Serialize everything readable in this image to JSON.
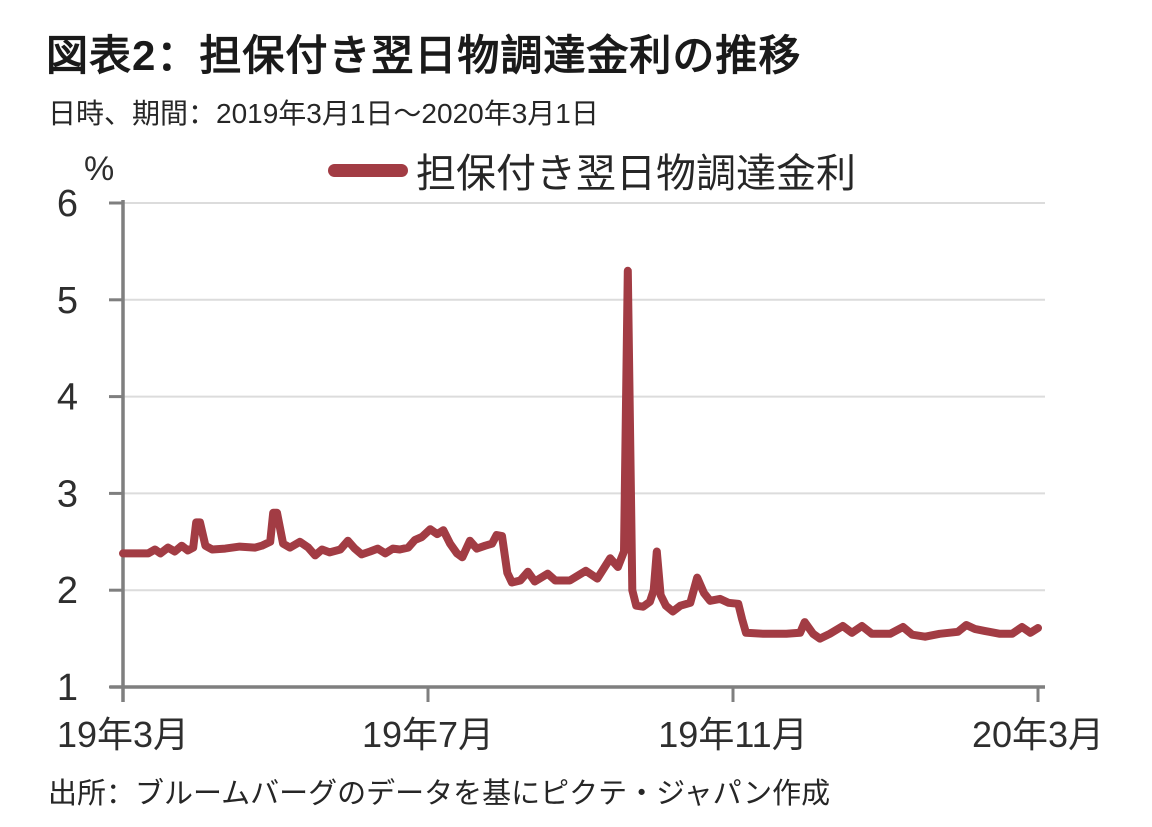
{
  "header": {
    "title": "図表2：担保付き翌日物調達金利の推移",
    "subtitle": "日時、期間：2019年3月1日～2020年3月1日"
  },
  "legend": {
    "label": "担保付き翌日物調達金利"
  },
  "footer": {
    "source": "出所：ブルームバーグのデータを基にピクテ・ジャパン作成"
  },
  "colors": {
    "line": "#A23C44",
    "axis": "#7F7F7F",
    "grid": "#DCDCDC",
    "tick_text": "#2e2e2e",
    "background": "#FFFFFF"
  },
  "chart_data": {
    "type": "line",
    "title": "図表2：担保付き翌日物調達金利の推移",
    "subtitle": "日時、期間：2019年3月1日～2020年3月1日",
    "legend_position": "top",
    "grid": "horizontal",
    "y_axis": {
      "unit": "%",
      "range": [
        1,
        6
      ],
      "ticks": [
        1,
        2,
        3,
        4,
        5,
        6
      ]
    },
    "x_axis": {
      "range": [
        0,
        12
      ],
      "ticks": [
        {
          "t": 0,
          "label": "19年3月"
        },
        {
          "t": 4,
          "label": "19年7月"
        },
        {
          "t": 8,
          "label": "19年11月"
        },
        {
          "t": 12,
          "label": "20年3月"
        }
      ]
    },
    "series": [
      {
        "name": "担保付き翌日物調達金利",
        "color": "#A23C44",
        "points": [
          [
            0.0,
            2.38
          ],
          [
            0.33,
            2.38
          ],
          [
            0.42,
            2.42
          ],
          [
            0.49,
            2.38
          ],
          [
            0.59,
            2.44
          ],
          [
            0.68,
            2.4
          ],
          [
            0.77,
            2.46
          ],
          [
            0.85,
            2.41
          ],
          [
            0.92,
            2.44
          ],
          [
            0.96,
            2.7
          ],
          [
            1.01,
            2.7
          ],
          [
            1.08,
            2.46
          ],
          [
            1.17,
            2.42
          ],
          [
            1.34,
            2.43
          ],
          [
            1.53,
            2.45
          ],
          [
            1.73,
            2.44
          ],
          [
            1.82,
            2.46
          ],
          [
            1.93,
            2.5
          ],
          [
            1.97,
            2.8
          ],
          [
            2.02,
            2.8
          ],
          [
            2.1,
            2.48
          ],
          [
            2.19,
            2.44
          ],
          [
            2.32,
            2.5
          ],
          [
            2.43,
            2.44
          ],
          [
            2.52,
            2.36
          ],
          [
            2.61,
            2.42
          ],
          [
            2.71,
            2.39
          ],
          [
            2.85,
            2.42
          ],
          [
            2.95,
            2.51
          ],
          [
            3.04,
            2.43
          ],
          [
            3.13,
            2.37
          ],
          [
            3.24,
            2.4
          ],
          [
            3.34,
            2.43
          ],
          [
            3.44,
            2.38
          ],
          [
            3.54,
            2.43
          ],
          [
            3.63,
            2.42
          ],
          [
            3.74,
            2.44
          ],
          [
            3.83,
            2.52
          ],
          [
            3.92,
            2.55
          ],
          [
            4.03,
            2.63
          ],
          [
            4.12,
            2.58
          ],
          [
            4.2,
            2.62
          ],
          [
            4.29,
            2.48
          ],
          [
            4.38,
            2.38
          ],
          [
            4.45,
            2.34
          ],
          [
            4.55,
            2.51
          ],
          [
            4.64,
            2.43
          ],
          [
            4.75,
            2.46
          ],
          [
            4.84,
            2.48
          ],
          [
            4.9,
            2.57
          ],
          [
            4.97,
            2.56
          ],
          [
            5.04,
            2.18
          ],
          [
            5.1,
            2.08
          ],
          [
            5.21,
            2.1
          ],
          [
            5.31,
            2.19
          ],
          [
            5.4,
            2.09
          ],
          [
            5.57,
            2.17
          ],
          [
            5.67,
            2.1
          ],
          [
            5.86,
            2.1
          ],
          [
            6.07,
            2.2
          ],
          [
            6.22,
            2.12
          ],
          [
            6.39,
            2.33
          ],
          [
            6.49,
            2.24
          ],
          [
            6.57,
            2.4
          ],
          [
            6.62,
            5.3
          ],
          [
            6.68,
            2.0
          ],
          [
            6.73,
            1.84
          ],
          [
            6.82,
            1.83
          ],
          [
            6.91,
            1.88
          ],
          [
            6.96,
            2.0
          ],
          [
            7.0,
            2.4
          ],
          [
            7.05,
            1.95
          ],
          [
            7.12,
            1.84
          ],
          [
            7.21,
            1.78
          ],
          [
            7.31,
            1.84
          ],
          [
            7.44,
            1.87
          ],
          [
            7.53,
            2.13
          ],
          [
            7.62,
            1.97
          ],
          [
            7.7,
            1.89
          ],
          [
            7.83,
            1.91
          ],
          [
            7.94,
            1.87
          ],
          [
            8.07,
            1.86
          ],
          [
            8.12,
            1.7
          ],
          [
            8.17,
            1.56
          ],
          [
            8.4,
            1.55
          ],
          [
            8.7,
            1.55
          ],
          [
            8.88,
            1.56
          ],
          [
            8.94,
            1.67
          ],
          [
            9.05,
            1.55
          ],
          [
            9.14,
            1.5
          ],
          [
            9.27,
            1.55
          ],
          [
            9.44,
            1.63
          ],
          [
            9.56,
            1.56
          ],
          [
            9.69,
            1.63
          ],
          [
            9.82,
            1.55
          ],
          [
            10.06,
            1.55
          ],
          [
            10.23,
            1.62
          ],
          [
            10.35,
            1.54
          ],
          [
            10.52,
            1.52
          ],
          [
            10.71,
            1.55
          ],
          [
            10.95,
            1.57
          ],
          [
            11.06,
            1.64
          ],
          [
            11.17,
            1.6
          ],
          [
            11.3,
            1.58
          ],
          [
            11.5,
            1.55
          ],
          [
            11.66,
            1.55
          ],
          [
            11.79,
            1.62
          ],
          [
            11.9,
            1.56
          ],
          [
            12.0,
            1.61
          ]
        ]
      }
    ]
  }
}
